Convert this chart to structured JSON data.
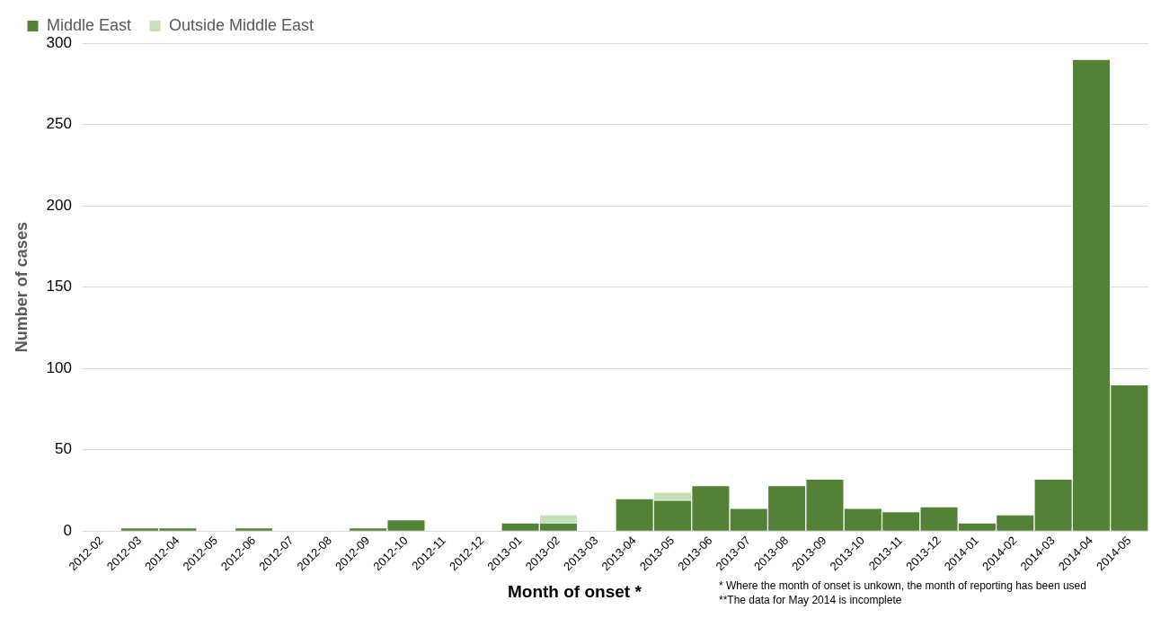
{
  "chart_data": {
    "type": "bar",
    "stacked": true,
    "categories": [
      "2012-02",
      "2012-03",
      "2012-04",
      "2012-05",
      "2012-06",
      "2012-07",
      "2012-08",
      "2012-09",
      "2012-10",
      "2012-11",
      "2012-12",
      "2013-01",
      "2013-02",
      "2013-03",
      "2013-04",
      "2013-05",
      "2013-06",
      "2013-07",
      "2013-08",
      "2013-09",
      "2013-10",
      "2013-11",
      "2013-12",
      "2014-01",
      "2014-02",
      "2014-03",
      "2014-04",
      "2014-05"
    ],
    "series": [
      {
        "name": "Middle East",
        "color": "#538135",
        "values": [
          0,
          2,
          2,
          0,
          2,
          0,
          0,
          2,
          7,
          0,
          0,
          5,
          5,
          0,
          20,
          19,
          28,
          14,
          28,
          32,
          14,
          12,
          15,
          5,
          10,
          32,
          290,
          90
        ]
      },
      {
        "name": "Outside Middle East",
        "color": "#c5e0b4",
        "values": [
          0,
          0,
          0,
          0,
          0,
          0,
          0,
          0,
          0,
          0,
          0,
          0,
          5,
          0,
          0,
          5,
          0,
          0,
          0,
          0,
          0,
          0,
          0,
          0,
          0,
          0,
          0,
          0
        ]
      }
    ],
    "xlabel": "Month of onset *",
    "ylabel": "Number of cases",
    "ylim": [
      0,
      300
    ],
    "yticks": [
      0,
      50,
      100,
      150,
      200,
      250,
      300
    ],
    "grid": "y",
    "legend": "top left",
    "annotations": [
      "* Where the month of onset is unkown, the month of reporting has been used",
      "**The data for May 2014 is incomplete"
    ]
  }
}
